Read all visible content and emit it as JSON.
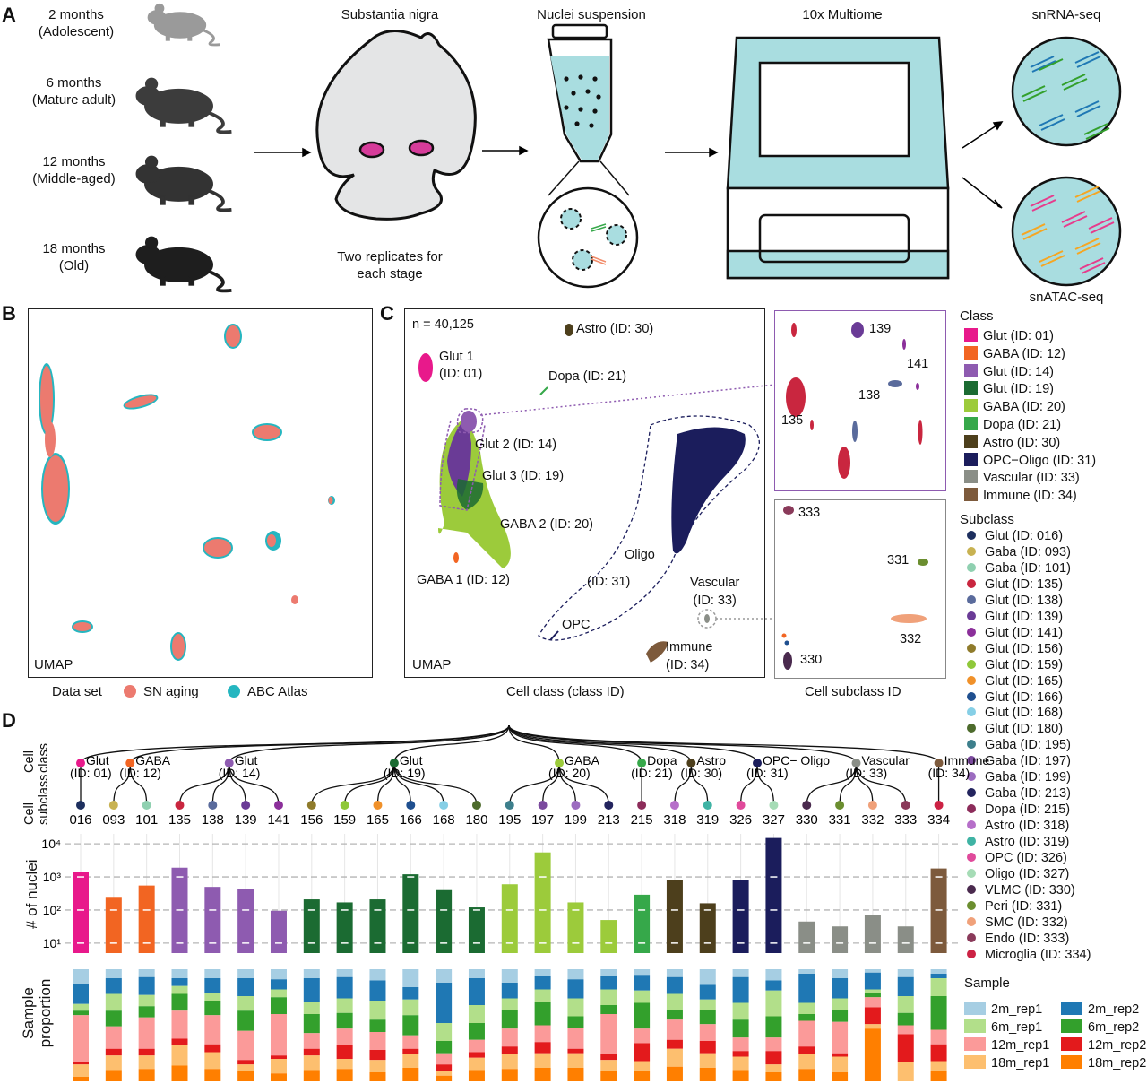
{
  "panelA": {
    "letter": "A",
    "ages": [
      {
        "age": "2 months",
        "stage": "(Adolescent)"
      },
      {
        "age": "6 months",
        "stage": "(Mature adult)"
      },
      {
        "age": "12 months",
        "stage": "(Middle-aged)"
      },
      {
        "age": "18 months",
        "stage": "(Old)"
      }
    ],
    "sn_title": "Substantia nigra",
    "replicates": "Two replicates for each stage",
    "nuclei_title": "Nuclei suspension",
    "multiome_title": "10x Multiome",
    "rna_title": "snRNA-seq",
    "atac_title": "snATAC-seq",
    "colors": {
      "sn_region": "#d63c9a",
      "tube": "#a9dde0",
      "machine": "#a9dde0"
    }
  },
  "panelB": {
    "letter": "B",
    "umap_label": "UMAP",
    "legend_title": "Data set",
    "legend": [
      {
        "label": "SN aging",
        "color": "#ec7a6f"
      },
      {
        "label": "ABC Atlas",
        "color": "#25b6c0"
      }
    ]
  },
  "panelC": {
    "letter": "C",
    "n_label": "n = 40,125",
    "umap_label": "UMAP",
    "xcaption": "Cell class (class ID)",
    "subcaption": "Cell subclass ID",
    "cluster_labels": {
      "glut1_a": "Glut 1",
      "glut1_b": "(ID: 01)",
      "astro": "Astro (ID: 30)",
      "dopa": "Dopa (ID: 21)",
      "glut2": "Glut 2 (ID: 14)",
      "glut3": "Glut 3 (ID: 19)",
      "gaba2": "GABA 2 (ID: 20)",
      "gaba1": "GABA 1 (ID: 12)",
      "oligo": "Oligo",
      "oligo_id": "(ID: 31)",
      "opc": "OPC",
      "vascular_a": "Vascular",
      "vascular_b": "(ID: 33)",
      "immune_a": "Immune",
      "immune_b": "(ID: 34)"
    },
    "inset_top_labels": [
      "139",
      "141",
      "138",
      "135"
    ],
    "inset_bottom_labels": [
      "333",
      "331",
      "332",
      "330"
    ]
  },
  "class_legend": {
    "title": "Class",
    "items": [
      {
        "label": "Glut (ID: 01)",
        "color": "#e8198b"
      },
      {
        "label": "GABA (ID: 12)",
        "color": "#f26522"
      },
      {
        "label": "Glut (ID: 14)",
        "color": "#8e5bb0"
      },
      {
        "label": "Glut (ID: 19)",
        "color": "#1b6b32"
      },
      {
        "label": "GABA (ID: 20)",
        "color": "#9ccb3b"
      },
      {
        "label": "Dopa (ID: 21)",
        "color": "#36a84a"
      },
      {
        "label": "Astro (ID: 30)",
        "color": "#4d3f1c"
      },
      {
        "label": "OPC−Oligo (ID: 31)",
        "color": "#1b1d5c"
      },
      {
        "label": "Vascular (ID: 33)",
        "color": "#8a8e87"
      },
      {
        "label": "Immune (ID: 34)",
        "color": "#7d5a3c"
      }
    ]
  },
  "subclass_legend": {
    "title": "Subclass",
    "items": [
      {
        "label": "Glut (ID: 016)",
        "color": "#1d2f5e"
      },
      {
        "label": "Gaba (ID: 093)",
        "color": "#c8b252"
      },
      {
        "label": "Gaba (ID: 101)",
        "color": "#8fd0b0"
      },
      {
        "label": "Glut (ID: 135)",
        "color": "#c9263f"
      },
      {
        "label": "Glut (ID: 138)",
        "color": "#5a6b9c"
      },
      {
        "label": "Glut (ID: 139)",
        "color": "#6a3b96"
      },
      {
        "label": "Glut (ID: 141)",
        "color": "#8b2f9a"
      },
      {
        "label": "Glut (ID: 156)",
        "color": "#8f7b2b"
      },
      {
        "label": "Glut (ID: 159)",
        "color": "#8fc83a"
      },
      {
        "label": "Glut (ID: 165)",
        "color": "#f0912a"
      },
      {
        "label": "Glut (ID: 166)",
        "color": "#1f4f8f"
      },
      {
        "label": "Glut (ID: 168)",
        "color": "#86cfe6"
      },
      {
        "label": "Glut (ID: 180)",
        "color": "#4d6b2c"
      },
      {
        "label": "Gaba (ID: 195)",
        "color": "#3d7f8c"
      },
      {
        "label": "Gaba (ID: 197)",
        "color": "#7b4a9e"
      },
      {
        "label": "Gaba (ID: 199)",
        "color": "#9c6cc0"
      },
      {
        "label": "Gaba (ID: 213)",
        "color": "#23245e"
      },
      {
        "label": "Dopa (ID: 215)",
        "color": "#8c2c5a"
      },
      {
        "label": "Astro (ID: 318)",
        "color": "#b66fc9"
      },
      {
        "label": "Astro (ID: 319)",
        "color": "#3fb3a4"
      },
      {
        "label": "OPC (ID: 326)",
        "color": "#e04a9b"
      },
      {
        "label": "Oligo (ID: 327)",
        "color": "#a6dcb6"
      },
      {
        "label": "VLMC (ID: 330)",
        "color": "#4a2a4e"
      },
      {
        "label": "Peri (ID: 331)",
        "color": "#6b8e2f"
      },
      {
        "label": "SMC (ID: 332)",
        "color": "#f0a17a"
      },
      {
        "label": "Endo (ID: 333)",
        "color": "#8a3a5a"
      },
      {
        "label": "Microglia (ID: 334)",
        "color": "#cc2244"
      }
    ]
  },
  "sample_legend": {
    "title": "Sample",
    "items": [
      {
        "label": "2m_rep1",
        "color": "#a6cee3"
      },
      {
        "label": "2m_rep2",
        "color": "#1f78b4"
      },
      {
        "label": "6m_rep1",
        "color": "#b2df8a"
      },
      {
        "label": "6m_rep2",
        "color": "#33a02c"
      },
      {
        "label": "12m_rep1",
        "color": "#fb9a99"
      },
      {
        "label": "12m_rep2",
        "color": "#e31a1c"
      },
      {
        "label": "18m_rep1",
        "color": "#fdbf6f"
      },
      {
        "label": "18m_rep2",
        "color": "#ff7f00"
      }
    ]
  },
  "panelD": {
    "letter": "D",
    "tree_ylabel_class": "Cell class",
    "tree_ylabel_subclass": "Cell subclass",
    "bar_ylabel": "# of nuclei",
    "prop_ylabel": "Sample proportion",
    "tick_labels": [
      "10⁴",
      "10³",
      "10²",
      "10¹"
    ],
    "class_nodes": [
      {
        "label": "Glut (ID: 01)",
        "color": "#e8198b"
      },
      {
        "label": "GABA (ID: 12)",
        "color": "#f26522"
      },
      {
        "label": "Glut (ID: 14)",
        "color": "#8e5bb0"
      },
      {
        "label": "Glut (ID: 19)",
        "color": "#1b6b32"
      },
      {
        "label": "GABA (ID: 20)",
        "color": "#9ccb3b"
      },
      {
        "label": "Dopa (ID: 21)",
        "color": "#36a84a"
      },
      {
        "label": "Astro (ID: 30)",
        "color": "#4d3f1c"
      },
      {
        "label": "OPC− Oligo (ID: 31)",
        "color": "#1b1d5c"
      },
      {
        "label": "Vascular (ID: 33)",
        "color": "#8a8e87"
      },
      {
        "label": "Immune (ID: 34)",
        "color": "#7d5a3c"
      }
    ]
  },
  "chart_data": {
    "type": "bar",
    "title": "",
    "ylabel": "# of nuclei",
    "yscale": "log",
    "ylim": [
      5,
      20000
    ],
    "categories": [
      "016",
      "093",
      "101",
      "135",
      "138",
      "139",
      "141",
      "156",
      "159",
      "165",
      "166",
      "168",
      "180",
      "195",
      "197",
      "199",
      "213",
      "215",
      "318",
      "319",
      "326",
      "327",
      "330",
      "331",
      "332",
      "333",
      "334"
    ],
    "class_of_category": [
      0,
      1,
      1,
      2,
      2,
      2,
      2,
      3,
      3,
      3,
      3,
      3,
      3,
      4,
      4,
      4,
      4,
      5,
      6,
      6,
      7,
      7,
      8,
      8,
      8,
      8,
      9
    ],
    "values": [
      1400,
      250,
      550,
      1900,
      500,
      420,
      95,
      210,
      170,
      210,
      1200,
      400,
      120,
      600,
      5500,
      170,
      50,
      290,
      800,
      160,
      800,
      15000,
      45,
      32,
      70,
      32,
      1800
    ],
    "proportion_series": [
      "2m_rep1",
      "2m_rep2",
      "6m_rep1",
      "6m_rep2",
      "12m_rep1",
      "12m_rep2",
      "18m_rep1",
      "18m_rep2"
    ],
    "proportions": [
      [
        0.13,
        0.18,
        0.06,
        0.04,
        0.42,
        0.02,
        0.11,
        0.04
      ],
      [
        0.08,
        0.14,
        0.15,
        0.14,
        0.2,
        0.06,
        0.13,
        0.1
      ],
      [
        0.07,
        0.16,
        0.1,
        0.1,
        0.28,
        0.06,
        0.12,
        0.11
      ],
      [
        0.08,
        0.07,
        0.07,
        0.15,
        0.25,
        0.06,
        0.18,
        0.14
      ],
      [
        0.08,
        0.13,
        0.07,
        0.13,
        0.26,
        0.07,
        0.15,
        0.11
      ],
      [
        0.08,
        0.16,
        0.13,
        0.18,
        0.26,
        0.04,
        0.06,
        0.09
      ],
      [
        0.09,
        0.09,
        0.07,
        0.15,
        0.37,
        0.03,
        0.13,
        0.07
      ],
      [
        0.08,
        0.21,
        0.11,
        0.17,
        0.14,
        0.06,
        0.13,
        0.1
      ],
      [
        0.07,
        0.19,
        0.13,
        0.14,
        0.15,
        0.12,
        0.09,
        0.11
      ],
      [
        0.1,
        0.18,
        0.17,
        0.11,
        0.16,
        0.09,
        0.11,
        0.08
      ],
      [
        0.16,
        0.11,
        0.14,
        0.18,
        0.12,
        0.05,
        0.12,
        0.12
      ],
      [
        0.12,
        0.36,
        0.16,
        0.11,
        0.1,
        0.06,
        0.04,
        0.05
      ],
      [
        0.08,
        0.24,
        0.16,
        0.15,
        0.11,
        0.05,
        0.11,
        0.1
      ],
      [
        0.12,
        0.14,
        0.1,
        0.17,
        0.16,
        0.07,
        0.13,
        0.11
      ],
      [
        0.06,
        0.12,
        0.11,
        0.21,
        0.15,
        0.1,
        0.13,
        0.12
      ],
      [
        0.09,
        0.17,
        0.16,
        0.1,
        0.19,
        0.04,
        0.13,
        0.12
      ],
      [
        0.06,
        0.12,
        0.14,
        0.08,
        0.36,
        0.05,
        0.1,
        0.09
      ],
      [
        0.05,
        0.14,
        0.11,
        0.23,
        0.13,
        0.16,
        0.09,
        0.09
      ],
      [
        0.07,
        0.15,
        0.14,
        0.09,
        0.18,
        0.08,
        0.16,
        0.13
      ],
      [
        0.14,
        0.13,
        0.09,
        0.13,
        0.15,
        0.11,
        0.13,
        0.12
      ],
      [
        0.07,
        0.23,
        0.15,
        0.16,
        0.12,
        0.05,
        0.12,
        0.1
      ],
      [
        0.1,
        0.09,
        0.23,
        0.19,
        0.12,
        0.12,
        0.07,
        0.08
      ],
      [
        0.04,
        0.26,
        0.1,
        0.06,
        0.23,
        0.07,
        0.13,
        0.11
      ],
      [
        0.08,
        0.18,
        0.1,
        0.11,
        0.28,
        0.03,
        0.14,
        0.08
      ],
      [
        0.03,
        0.15,
        0.03,
        0.04,
        0.09,
        0.15,
        0.04,
        0.47
      ],
      [
        0.07,
        0.17,
        0.15,
        0.11,
        0.08,
        0.25,
        0.17,
        0.0
      ],
      [
        0.04,
        0.04,
        0.16,
        0.3,
        0.13,
        0.15,
        0.09,
        0.09
      ]
    ]
  }
}
